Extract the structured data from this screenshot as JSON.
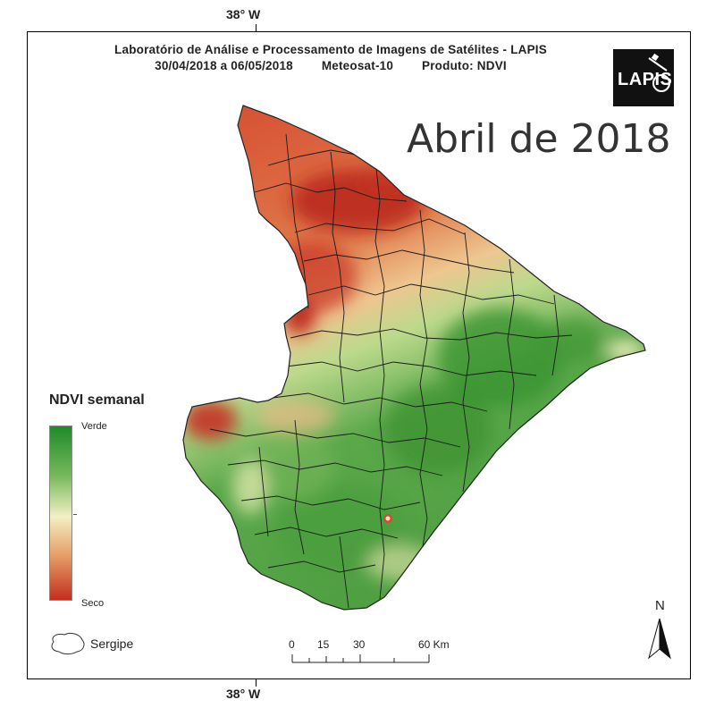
{
  "header": {
    "line1": "Laboratório de Análise e Processamento de Imagens de Satélites - LAPIS",
    "date_range": "30/04/2018  a 06/05/2018",
    "satellite": "Meteosat-10",
    "product": "Produto: NDVI"
  },
  "logo": {
    "text": "LAPIS"
  },
  "month_label": "Abril de 2018",
  "coords": {
    "top": "38° W",
    "bottom": "38° W"
  },
  "legend": {
    "title": "NDVI semanal",
    "top_label": "Verde",
    "bottom_label": "Seco",
    "colors": {
      "verde": "#1e8a2a",
      "neutral": "#f2f0c4",
      "seco": "#c42f1f"
    }
  },
  "area_legend": {
    "label": "Sergipe"
  },
  "scale_bar": {
    "labels": [
      "0",
      "15",
      "30",
      "60 Km"
    ]
  },
  "north_arrow": {
    "label": "N"
  }
}
